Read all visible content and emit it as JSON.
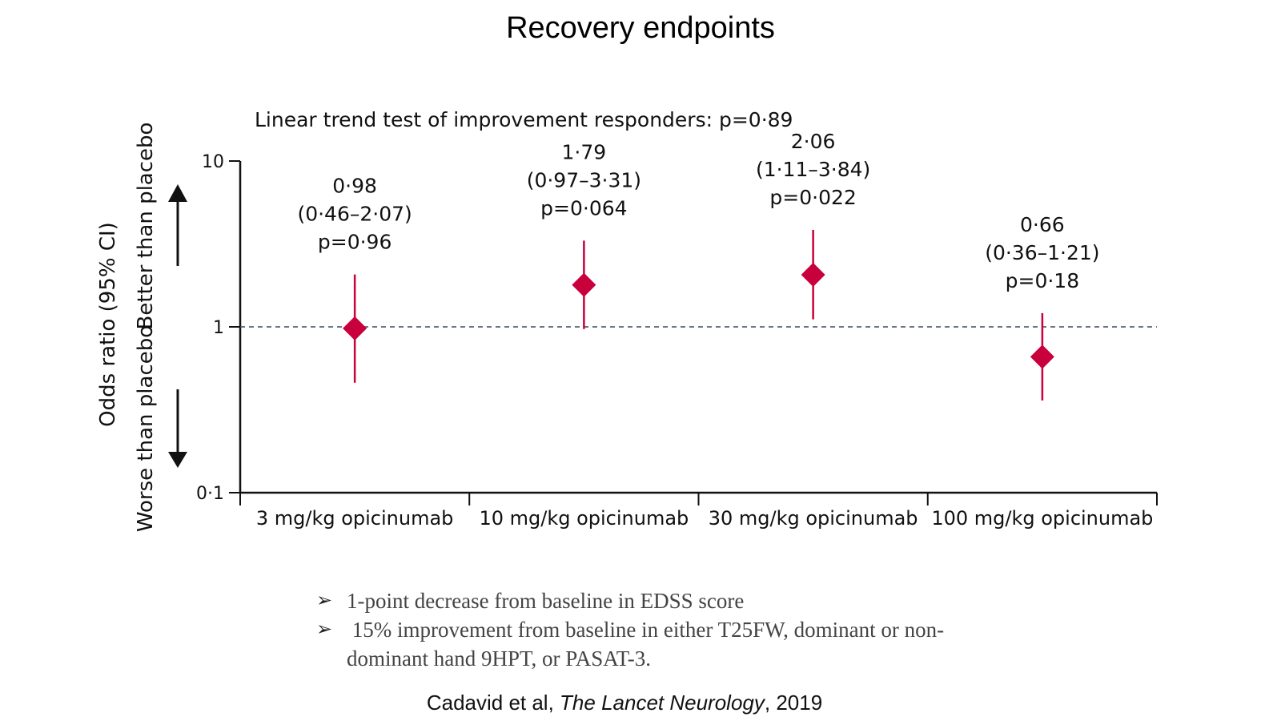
{
  "slide": {
    "title": "Recovery endpoints",
    "bullets": [
      "1-point decrease from baseline in EDSS score",
      " 15% improvement from baseline in either T25FW, dominant or non-dominant hand 9HPT, or PASAT-3."
    ],
    "citation": {
      "authors": "Cadavid et al, ",
      "journal": "The Lancet Neurology",
      "year": ", 2019"
    }
  },
  "chart_data": {
    "type": "scatter",
    "subtitle": "Linear trend test of improvement responders: p=0·89",
    "ylabel": "Odds ratio (95% CI)",
    "y_scale": "log",
    "ylim": [
      0.1,
      10
    ],
    "y_ticks": [
      {
        "value": 0.1,
        "label": "0·1"
      },
      {
        "value": 1,
        "label": "1"
      },
      {
        "value": 10,
        "label": "10"
      }
    ],
    "reference_line": {
      "value": 1,
      "style": "dashed"
    },
    "direction_labels": {
      "up": "Better than placebo",
      "down": "Worse than placebo"
    },
    "categories": [
      "3 mg/kg opicinumab",
      "10 mg/kg opicinumab",
      "30 mg/kg opicinumab",
      "100 mg/kg opicinumab"
    ],
    "points": [
      {
        "or": 0.98,
        "lower": 0.46,
        "upper": 2.07,
        "label_or": "0·98",
        "label_ci": "(0·46–2·07)",
        "label_p": "p=0·96"
      },
      {
        "or": 1.79,
        "lower": 0.97,
        "upper": 3.31,
        "label_or": "1·79",
        "label_ci": "(0·97–3·31)",
        "label_p": "p=0·064"
      },
      {
        "or": 2.06,
        "lower": 1.11,
        "upper": 3.84,
        "label_or": "2·06",
        "label_ci": "(1·11–3·84)",
        "label_p": "p=0·022"
      },
      {
        "or": 0.66,
        "lower": 0.36,
        "upper": 1.21,
        "label_or": "0·66",
        "label_ci": "(0·36–1·21)",
        "label_p": "p=0·18"
      }
    ],
    "marker": "diamond",
    "colors": {
      "marker": "#c8003c",
      "axis": "#111111",
      "reference_line": "#3a4a5a"
    }
  }
}
